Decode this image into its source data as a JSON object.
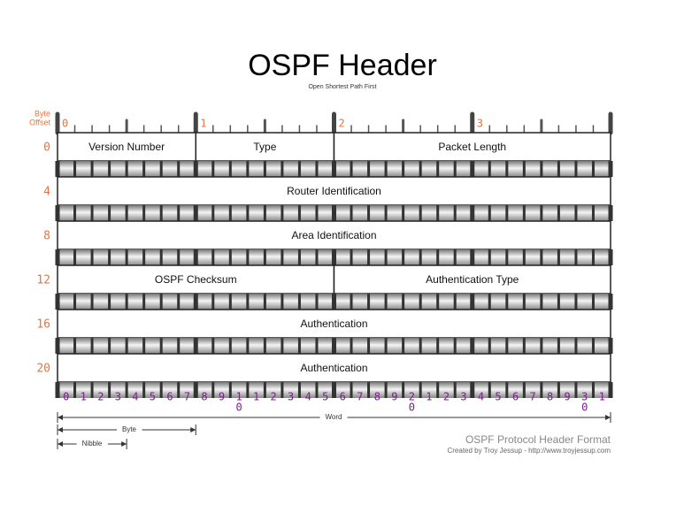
{
  "header": {
    "title": "OSPF Header",
    "subtitle": "Open Shortest Path First"
  },
  "byte_offset_label": [
    "Byte",
    "Offset"
  ],
  "byte_markers": [
    "0",
    "1",
    "2",
    "3"
  ],
  "rows": [
    {
      "offset": "0",
      "fields": [
        "Version Number",
        "Type",
        "Packet Length"
      ]
    },
    {
      "offset": "4",
      "fields": [
        "Router Identification"
      ]
    },
    {
      "offset": "8",
      "fields": [
        "Area Identification"
      ]
    },
    {
      "offset": "12",
      "fields": [
        "OSPF Checksum",
        "Authentication Type"
      ]
    },
    {
      "offset": "16",
      "fields": [
        "Authentication"
      ]
    },
    {
      "offset": "20",
      "fields": [
        "Authentication"
      ]
    }
  ],
  "bit_labels": [
    [
      "0"
    ],
    [
      "1"
    ],
    [
      "2"
    ],
    [
      "3"
    ],
    [
      "4"
    ],
    [
      "5"
    ],
    [
      "6"
    ],
    [
      "7"
    ],
    [
      "8"
    ],
    [
      "9"
    ],
    [
      "1",
      "0"
    ],
    [
      "1"
    ],
    [
      "2"
    ],
    [
      "3"
    ],
    [
      "4"
    ],
    [
      "5"
    ],
    [
      "6"
    ],
    [
      "7"
    ],
    [
      "8"
    ],
    [
      "9"
    ],
    [
      "2",
      "0"
    ],
    [
      "1"
    ],
    [
      "2"
    ],
    [
      "3"
    ],
    [
      "4"
    ],
    [
      "5"
    ],
    [
      "6"
    ],
    [
      "7"
    ],
    [
      "8"
    ],
    [
      "9"
    ],
    [
      "3",
      "0"
    ],
    [
      "1"
    ]
  ],
  "scale": {
    "word": "Word",
    "byte": "Byte",
    "nibble": "Nibble"
  },
  "footer": {
    "title": "OSPF Protocol Header Format",
    "credit": "Created by Troy Jessup - http://www.troyjessup.com"
  }
}
